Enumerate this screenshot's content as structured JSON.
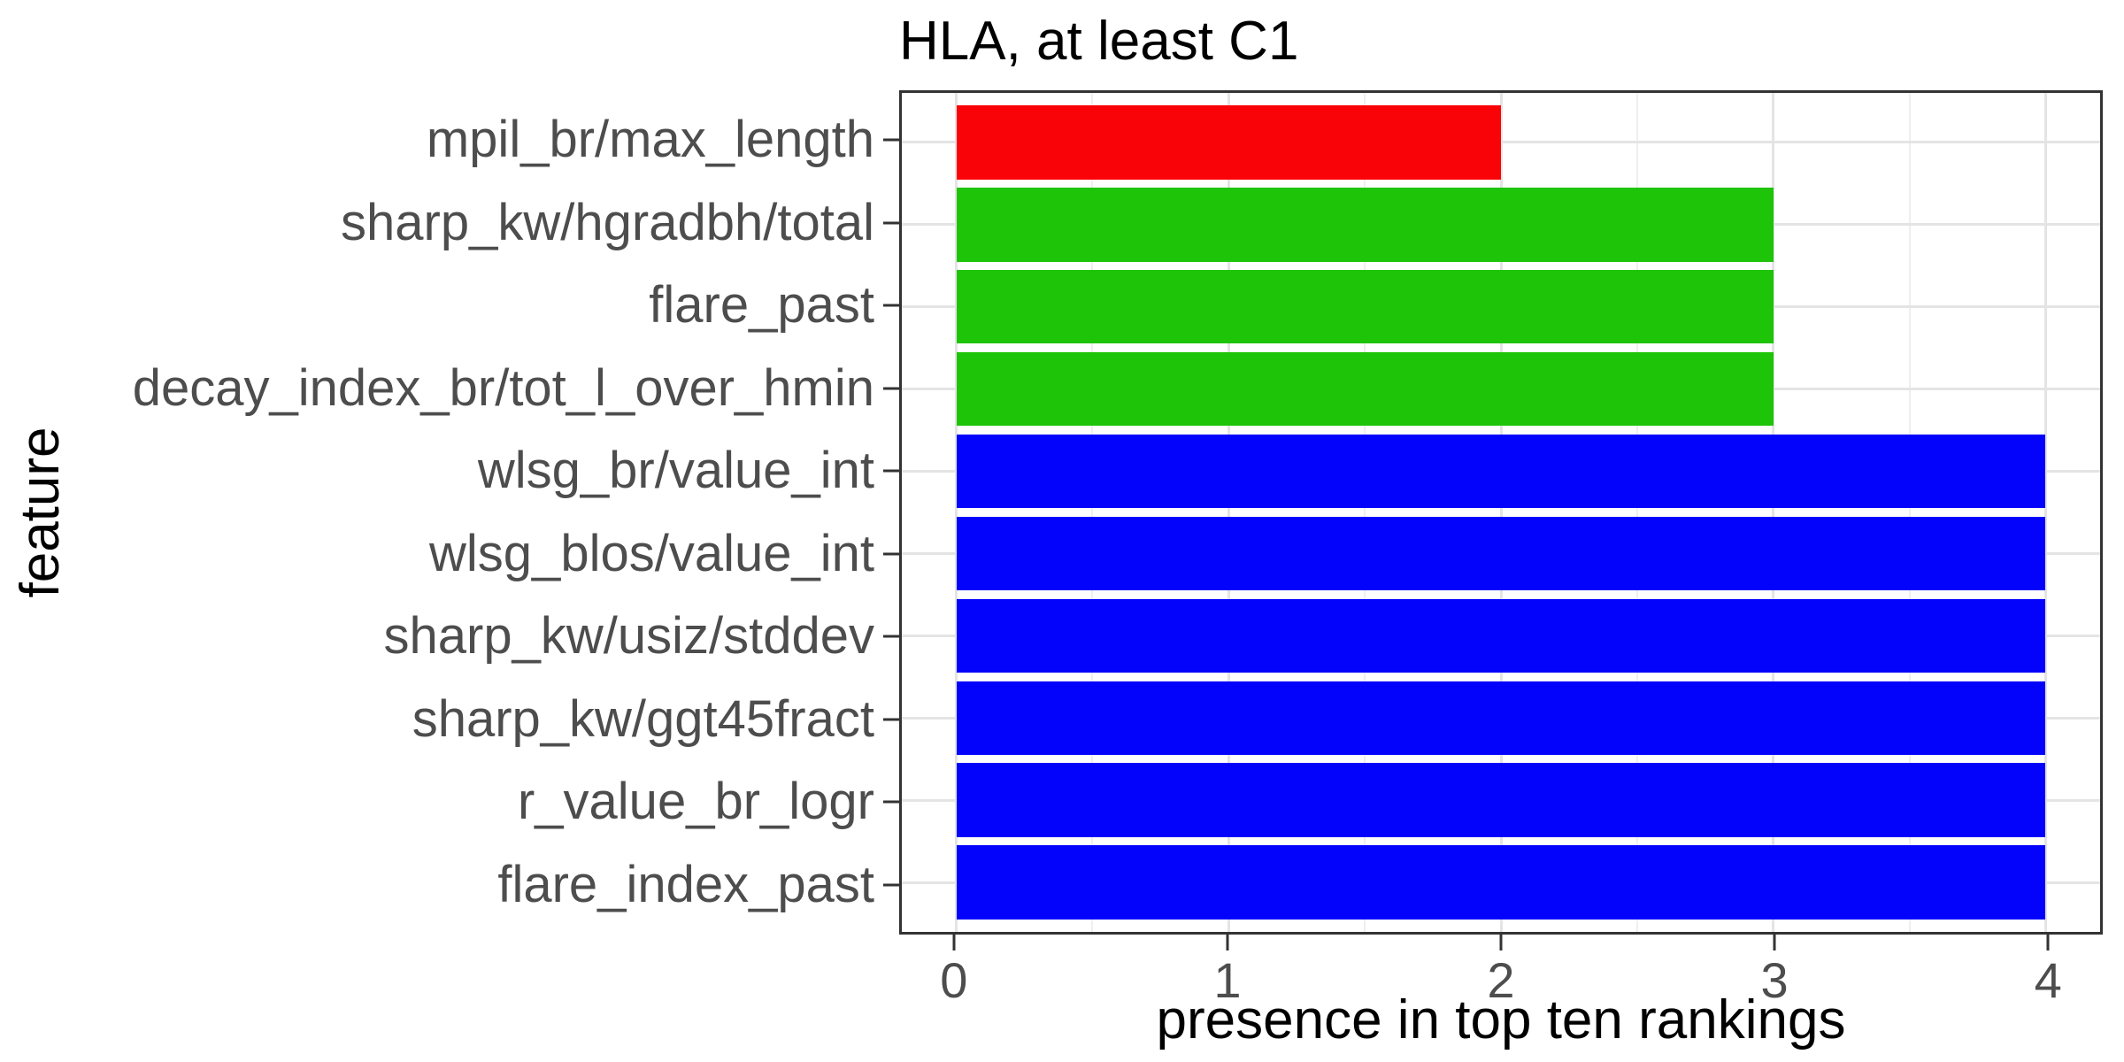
{
  "chart_data": {
    "type": "bar",
    "orientation": "horizontal",
    "title": "HLA, at least C1",
    "xlabel": "presence in top ten rankings",
    "ylabel": "feature",
    "categories": [
      "mpil_br/max_length",
      "sharp_kw/hgradbh/total",
      "flare_past",
      "decay_index_br/tot_l_over_hmin",
      "wlsg_br/value_int",
      "wlsg_blos/value_int",
      "sharp_kw/usiz/stddev",
      "sharp_kw/ggt45fract",
      "r_value_br_logr",
      "flare_index_past"
    ],
    "values": [
      2,
      3,
      3,
      3,
      4,
      4,
      4,
      4,
      4,
      4
    ],
    "bar_colors": [
      "#fa0308",
      "#1ec408",
      "#1ec408",
      "#1ec408",
      "#0303fb",
      "#0303fb",
      "#0303fb",
      "#0303fb",
      "#0303fb",
      "#0303fb"
    ],
    "x_ticks": [
      0,
      1,
      2,
      3,
      4
    ],
    "x_minor_ticks": [
      0.5,
      1.5,
      2.5,
      3.5
    ],
    "xlim": [
      -0.2,
      4.2
    ],
    "bar_width": 0.9,
    "y_edge_padding": 0.6,
    "grid": "vertical major+minor, horizontal major",
    "legend": "none"
  }
}
